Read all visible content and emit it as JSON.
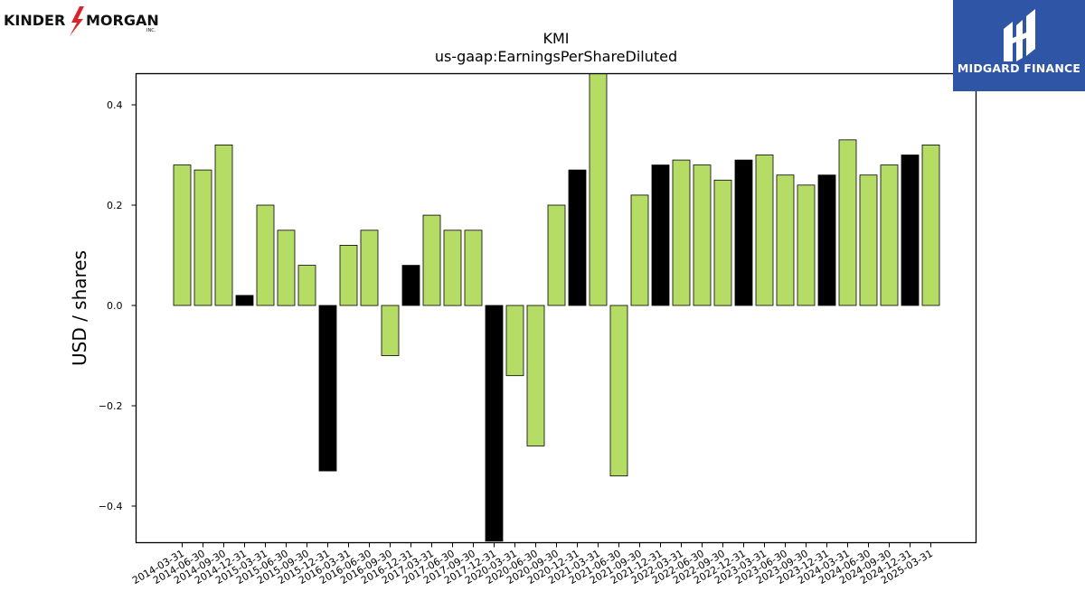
{
  "logos": {
    "left_text_1": "KINDER",
    "left_text_2": "MORGAN",
    "left_sub": "INC.",
    "right_text": "MIDGARD FINANCE"
  },
  "colors": {
    "bar_default": "#b5dd66",
    "bar_highlight": "#000000",
    "logo_blue": "#2f56a6",
    "logo_red": "#d9252a"
  },
  "chart_data": {
    "type": "bar",
    "title": "KMI",
    "subtitle": "us-gaap:EarningsPerShareDiluted",
    "ylabel": "USD / shares",
    "xlabel": "",
    "ylim": [
      -0.47,
      0.46
    ],
    "yticks": [
      -0.4,
      -0.2,
      0.0,
      0.2,
      0.4
    ],
    "ytick_labels": [
      "−0.4",
      "−0.2",
      "0.0",
      "0.2",
      "0.4"
    ],
    "grid": false,
    "categories": [
      "2014-03-31",
      "2014-06-30",
      "2014-09-30",
      "2014-12-31",
      "2015-03-31",
      "2015-06-30",
      "2015-09-30",
      "2015-12-31",
      "2016-03-31",
      "2016-06-30",
      "2016-09-30",
      "2016-12-31",
      "2017-03-31",
      "2017-06-30",
      "2017-09-30",
      "2017-12-31",
      "2020-03-31",
      "2020-06-30",
      "2020-09-30",
      "2020-12-31",
      "2021-03-31",
      "2021-06-30",
      "2021-09-30",
      "2021-12-31",
      "2022-03-31",
      "2022-06-30",
      "2022-09-30",
      "2022-12-31",
      "2023-03-31",
      "2023-06-30",
      "2023-09-30",
      "2023-12-31",
      "2024-03-31",
      "2024-06-30",
      "2024-09-30",
      "2024-12-31",
      "2025-03-31"
    ],
    "values": [
      0.28,
      0.27,
      0.32,
      0.02,
      0.2,
      0.15,
      0.08,
      -0.33,
      0.12,
      0.15,
      -0.1,
      0.08,
      0.18,
      0.15,
      0.15,
      -0.47,
      -0.14,
      -0.28,
      0.2,
      0.27,
      0.47,
      -0.34,
      0.22,
      0.28,
      0.29,
      0.28,
      0.25,
      0.29,
      0.3,
      0.26,
      0.24,
      0.26,
      0.33,
      0.26,
      0.28,
      0.3,
      0.32
    ],
    "highlight": [
      false,
      false,
      false,
      true,
      false,
      false,
      false,
      true,
      false,
      false,
      false,
      true,
      false,
      false,
      false,
      true,
      false,
      false,
      false,
      true,
      false,
      false,
      false,
      true,
      false,
      false,
      false,
      true,
      false,
      false,
      false,
      true,
      false,
      false,
      false,
      true,
      false
    ]
  }
}
